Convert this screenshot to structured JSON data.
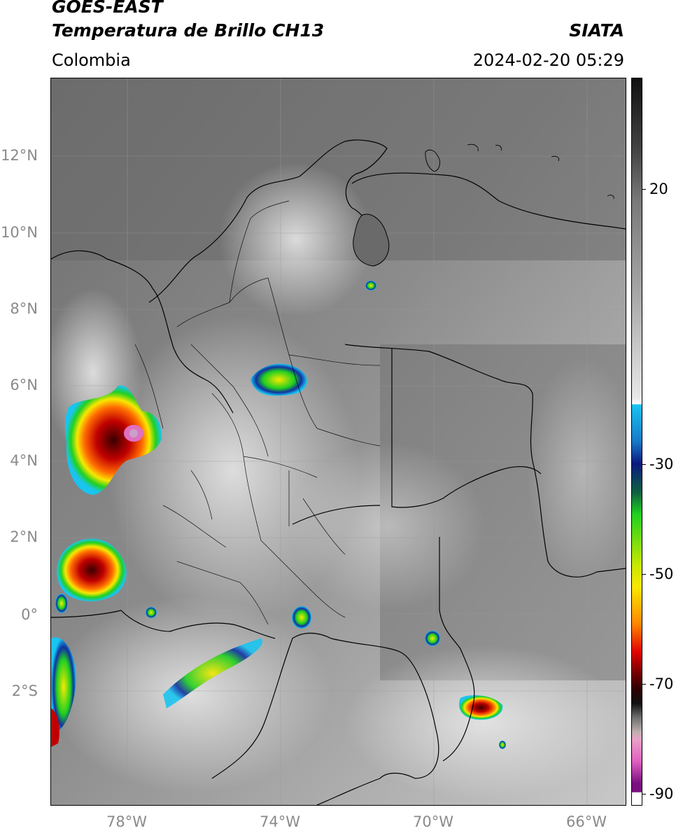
{
  "header": {
    "title_line1": "GOES-EAST",
    "title_line2": "Temperatura de Brillo CH13",
    "brand": "SIATA",
    "region": "Colombia",
    "timestamp": "2024-02-20 05:29"
  },
  "map": {
    "lat_labels": [
      "12°N",
      "10°N",
      "8°N",
      "6°N",
      "4°N",
      "2°N",
      "0°",
      "2°S"
    ],
    "lon_labels": [
      "78°W",
      "74°W",
      "70°W",
      "66°W"
    ],
    "extent": {
      "lon_min": -79.9,
      "lon_max": -65.0,
      "lat_min": -4.8,
      "lat_max": 14.0
    },
    "layers": [
      "satellite-ir-brightness-temperature",
      "country-borders",
      "department-borders",
      "coastlines",
      "graticule"
    ]
  },
  "colorbar": {
    "tick_labels": [
      "20",
      "-30",
      "-50",
      "-70",
      "-90"
    ],
    "colors": {
      "warm": "#1a1a1a",
      "mid_gray": "#8a8a8a",
      "cold_white": "#f4f4f4",
      "cyan": "#19c4f0",
      "blue": "#1030a0",
      "green": "#20d020",
      "yellow": "#f8e800",
      "orange": "#ff8800",
      "red": "#e00000",
      "darkred": "#500000",
      "magenta": "#e060c0",
      "purple": "#7a1080"
    }
  }
}
